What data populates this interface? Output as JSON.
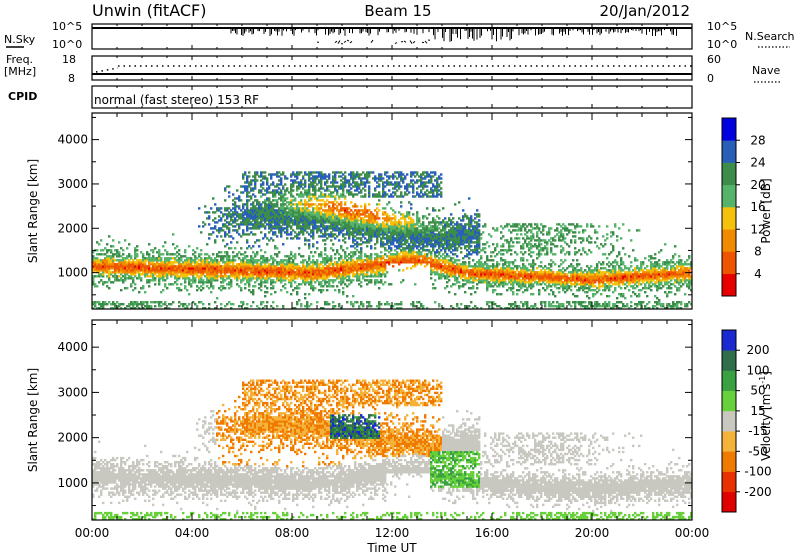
{
  "header": {
    "station": "Unwin (fitACF)",
    "beam": "Beam 15",
    "date": "20/Jan/2012"
  },
  "top_panels": {
    "nsky_label": "N.Sky",
    "nsky_ticks": [
      "10^5",
      "10^0"
    ],
    "nsearch_label": "N.Search",
    "nsearch_ticks": [
      "10^5",
      "10^0"
    ],
    "freq_label": "Freq.",
    "freq_unit": "[MHz]",
    "freq_ticks": [
      "18",
      "8"
    ],
    "nave_label": "Nave",
    "nave_ticks": [
      "60",
      "0"
    ],
    "cpid_label": "CPID",
    "cpid_text": "normal (fast stereo) 153 RF"
  },
  "chart_data": [
    {
      "type": "heatmap",
      "quantity": "power",
      "ylabel": "Slant Range [km]",
      "ylim": [
        180,
        4600
      ],
      "yticks": [
        "1000",
        "2000",
        "3000",
        "4000"
      ],
      "xlim": [
        0,
        24
      ],
      "colorbar_label": "Power [dB]",
      "colorbar_ticks": [
        "4",
        "8",
        "12",
        "16",
        "20",
        "24",
        "28"
      ],
      "colors": [
        "#0000e0",
        "#2a5fb8",
        "#3c8c4a",
        "#56b46a",
        "#f4c20d",
        "#f08a00",
        "#ee5500",
        "#e80000"
      ]
    },
    {
      "type": "heatmap",
      "quantity": "velocity",
      "ylabel": "Slant Range [km]",
      "ylim": [
        180,
        4600
      ],
      "yticks": [
        "1000",
        "2000",
        "3000",
        "4000"
      ],
      "xlim": [
        0,
        24
      ],
      "xticks": [
        "00:00",
        "04:00",
        "08:00",
        "12:00",
        "16:00",
        "20:00",
        "00:00"
      ],
      "xlabel": "Time UT",
      "colorbar_label": "Velocity [m s",
      "colorbar_label_sup": "-1",
      "colorbar_label_end": "]",
      "colorbar_ticks": [
        "200",
        "100",
        "50",
        "15",
        "-15",
        "-50",
        "-100",
        "-200"
      ],
      "colors": [
        "#1a2ad0",
        "#2f6e4a",
        "#3aa142",
        "#67d03a",
        "#c8c8c0",
        "#f4b23a",
        "#f07a00",
        "#e83000",
        "#e00000"
      ]
    }
  ]
}
